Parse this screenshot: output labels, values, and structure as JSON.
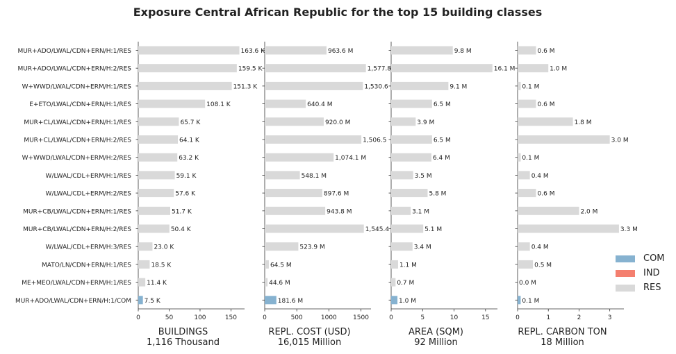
{
  "title": "Exposure Central African Republic for the top 15 building classes",
  "colors": {
    "COM": "#86b2d0",
    "IND": "#f47f6f",
    "RES": "#d9d9d9"
  },
  "legend": [
    {
      "label": "COM",
      "color": "#86b2d0"
    },
    {
      "label": "IND",
      "color": "#f47f6f"
    },
    {
      "label": "RES",
      "color": "#d9d9d9"
    }
  ],
  "chart_data": {
    "type": "bar",
    "orientation": "horizontal",
    "categories": [
      "MUR+ADO/LWAL/CDN+ERN/H:1/RES",
      "MUR+ADO/LWAL/CDN+ERN/H:2/RES",
      "W+WWD/LWAL/CDN+ERM/H:1/RES",
      "E+ETO/LWAL/CDN+ERN/H:1/RES",
      "MUR+CL/LWAL/CDN+ERN/H:1/RES",
      "MUR+CL/LWAL/CDN+ERN/H:2/RES",
      "W+WWD/LWAL/CDN+ERM/H:2/RES",
      "W/LWAL/CDL+ERM/H:1/RES",
      "W/LWAL/CDL+ERM/H:2/RES",
      "MUR+CB/LWAL/CDN+ERN/H:1/RES",
      "MUR+CB/LWAL/CDN+ERN/H:2/RES",
      "W/LWAL/CDL+ERM/H:3/RES",
      "MATO/LN/CDN+ERN/H:1/RES",
      "ME+MEO/LWAL/CDN+ERM/H:1/RES",
      "MUR+ADO/LWAL/CDN+ERN/H:1/COM"
    ],
    "occupancy": [
      "RES",
      "RES",
      "RES",
      "RES",
      "RES",
      "RES",
      "RES",
      "RES",
      "RES",
      "RES",
      "RES",
      "RES",
      "RES",
      "RES",
      "COM"
    ],
    "panels": [
      {
        "xlabel": "BUILDINGS",
        "total": "1,116 Thousand",
        "xlim": [
          0,
          172
        ],
        "ticks": [
          0,
          50,
          100,
          150
        ],
        "values": [
          163.6,
          159.5,
          151.3,
          108.1,
          65.7,
          64.1,
          63.2,
          59.1,
          57.6,
          51.7,
          50.4,
          23.0,
          18.5,
          11.4,
          7.5
        ],
        "labels": [
          "163.6 K",
          "159.5 K",
          "151.3 K",
          "108.1 K",
          "65.7 K",
          "64.1 K",
          "63.2 K",
          "59.1 K",
          "57.6 K",
          "51.7 K",
          "50.4 K",
          "23.0 K",
          "18.5 K",
          "11.4 K",
          "7.5 K"
        ]
      },
      {
        "xlabel": "REPL. COST (USD)",
        "total": "16,015 Million",
        "xlim": [
          0,
          1657
        ],
        "ticks": [
          0,
          500,
          1000,
          1500
        ],
        "values": [
          963.6,
          1577.8,
          1530.6,
          640.4,
          920.0,
          1506.5,
          1074.1,
          548.1,
          897.6,
          943.8,
          1545.4,
          523.9,
          64.5,
          44.6,
          181.6
        ],
        "labels": [
          "963.6 M",
          "1,577.8",
          "1,530.6",
          "640.4 M",
          "920.0 M",
          "1,506.5",
          "1,074.1 M",
          "548.1 M",
          "897.6 M",
          "943.8 M",
          "1,545.4",
          "523.9 M",
          "64.5 M",
          "44.6 M",
          "181.6 M"
        ]
      },
      {
        "xlabel": "AREA (SQM)",
        "total": "92 Million",
        "xlim": [
          0,
          16.9
        ],
        "ticks": [
          0,
          5,
          10,
          15
        ],
        "values": [
          9.8,
          16.1,
          9.1,
          6.5,
          3.9,
          6.5,
          6.4,
          3.5,
          5.8,
          3.1,
          5.1,
          3.4,
          1.1,
          0.7,
          1.0
        ],
        "labels": [
          "9.8 M",
          "16.1 M",
          "9.1 M",
          "6.5 M",
          "3.9 M",
          "6.5 M",
          "6.4 M",
          "3.5 M",
          "5.8 M",
          "3.1 M",
          "5.1 M",
          "3.4 M",
          "1.1 M",
          "0.7 M",
          "1.0 M"
        ]
      },
      {
        "xlabel": "REPL. CARBON TON",
        "total": "18 Million",
        "xlim": [
          0,
          3.46
        ],
        "ticks": [
          0,
          1,
          2,
          3
        ],
        "values": [
          0.6,
          1.0,
          0.1,
          0.6,
          1.8,
          3.0,
          0.1,
          0.4,
          0.6,
          2.0,
          3.3,
          0.4,
          0.5,
          0.0,
          0.1
        ],
        "labels": [
          "0.6 M",
          "1.0 M",
          "0.1 M",
          "0.6 M",
          "1.8 M",
          "3.0 M",
          "0.1 M",
          "0.4 M",
          "0.6 M",
          "2.0 M",
          "3.3 M",
          "0.4 M",
          "0.5 M",
          "0.0 M",
          "0.1 M"
        ]
      }
    ]
  }
}
